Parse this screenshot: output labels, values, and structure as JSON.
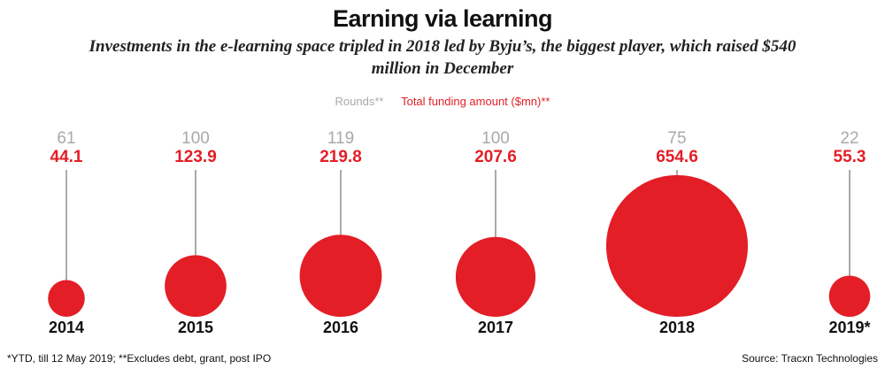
{
  "chart_data": {
    "type": "bubble",
    "title": "Earning via learning",
    "subtitle": "Investments in the e-learning space tripled in 2018 led by Byju’s, the biggest  player, which raised $540 million in December",
    "categories": [
      "2014",
      "2015",
      "2016",
      "2017",
      "2018",
      "2019*"
    ],
    "series": [
      {
        "name": "Rounds**",
        "color": "#a7a9ac",
        "values": [
          61,
          100,
          119,
          100,
          75,
          22
        ]
      },
      {
        "name": "Total funding amount ($mn)**",
        "color": "#e31e26",
        "values": [
          44.1,
          123.9,
          219.8,
          207.6,
          654.6,
          55.3
        ]
      }
    ],
    "footnote": "*YTD, till 12 May 2019; **Excludes debt, grant, post IPO",
    "source": "Source: Tracxn Technologies"
  }
}
